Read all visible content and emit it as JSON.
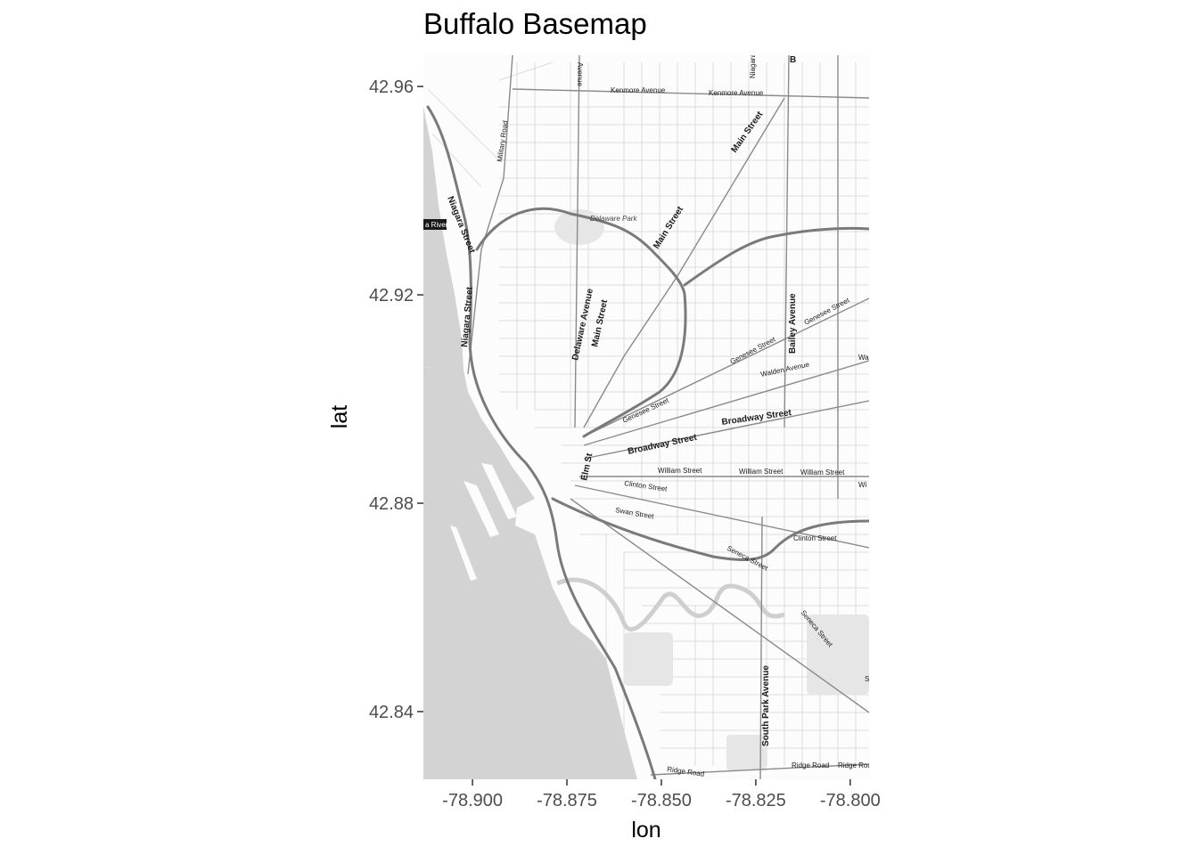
{
  "title": "Buffalo Basemap",
  "chart_data": {
    "type": "map",
    "title": "Buffalo Basemap",
    "xlabel": "lon",
    "ylabel": "lat",
    "xlim": [
      -78.913,
      -78.795
    ],
    "ylim": [
      42.827,
      42.966
    ],
    "x_ticks": [
      -78.9,
      -78.875,
      -78.85,
      -78.825,
      -78.8
    ],
    "x_tick_labels": [
      "-78.900",
      "-78.875",
      "-78.850",
      "-78.825",
      "-78.800"
    ],
    "y_ticks": [
      42.84,
      42.88,
      42.92,
      42.96
    ],
    "y_tick_labels": [
      "42.84",
      "42.88",
      "42.92",
      "42.96"
    ],
    "basemap": "grayscale street map",
    "grid": false
  },
  "streets": {
    "kenmore1": "Kenmore Avenue",
    "kenmore2": "Kenmore Avenue",
    "main1": "Main Street",
    "main2": "Main Street",
    "main3": "Main Street",
    "military": "Military Road",
    "niagara1": "Niagara Street",
    "niagara2": "Niagara Street",
    "river": "a River",
    "delaware_park": "Delaware Park",
    "delaware_ave": "Delaware Avenue",
    "bailey": "Bailey Avenue",
    "genesee1": "Genesee Street",
    "genesee2": "Genesee Street",
    "genesee3": "Genesee Street",
    "walden": "Walden Avenue",
    "broadway1": "Broadway Street",
    "broadway2": "Broadway Street",
    "william1": "William Street",
    "william2": "William Street",
    "william3": "William Street",
    "elm": "Elm St",
    "clinton1": "Clinton Street",
    "clinton2": "Clinton Street",
    "swan": "Swan Street",
    "seneca1": "Seneca Street",
    "seneca2": "Seneca Street",
    "south_park": "South Park Avenue",
    "ridge1": "Ridge Road",
    "ridge2": "Ridge Road",
    "ridge3": "Ridge Road",
    "top_avenue": "Avenue",
    "niagara_top": "Niagara",
    "b_top": "B",
    "wa": "Wa",
    "wi": "Wi",
    "s_edge": "S"
  },
  "colors": {
    "water": "#d3d3d3",
    "land": "#fcfcfc",
    "road_major": "#808080",
    "road_minor": "#bdbdbd"
  }
}
